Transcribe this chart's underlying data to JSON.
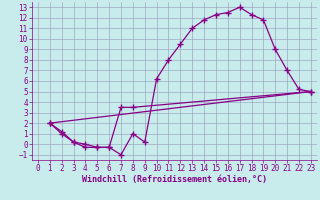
{
  "xlabel": "Windchill (Refroidissement éolien,°C)",
  "bg_color": "#c8ecec",
  "line_color": "#880088",
  "grid_color": "#9999bb",
  "xlim": [
    -0.5,
    23.5
  ],
  "ylim": [
    -1.5,
    13.5
  ],
  "xticks": [
    0,
    1,
    2,
    3,
    4,
    5,
    6,
    7,
    8,
    9,
    10,
    11,
    12,
    13,
    14,
    15,
    16,
    17,
    18,
    19,
    20,
    21,
    22,
    23
  ],
  "yticks": [
    -1,
    0,
    1,
    2,
    3,
    4,
    5,
    6,
    7,
    8,
    9,
    10,
    11,
    12,
    13
  ],
  "line1_x": [
    1,
    2,
    3,
    4,
    5,
    6,
    7,
    8,
    9,
    10,
    11,
    12,
    13,
    14,
    15,
    16,
    17,
    18,
    19,
    20,
    21,
    22,
    23
  ],
  "line1_y": [
    2,
    1,
    0.2,
    0,
    -0.3,
    -0.3,
    -1,
    1.0,
    0.2,
    6.2,
    8.0,
    9.5,
    11.0,
    11.8,
    12.3,
    12.5,
    13.0,
    12.3,
    11.8,
    9.0,
    7.0,
    5.2,
    5.0
  ],
  "line2_x": [
    1,
    2,
    3,
    4,
    5,
    6,
    7,
    8,
    23
  ],
  "line2_y": [
    2,
    1.2,
    0.2,
    -0.3,
    -0.3,
    -0.3,
    3.5,
    3.5,
    5.0
  ],
  "line3_x": [
    1,
    23
  ],
  "line3_y": [
    2,
    5.0
  ],
  "marker": "+",
  "markersize": 4,
  "markeredgewidth": 1.0,
  "linewidth": 0.9,
  "tick_fontsize": 5.5,
  "xlabel_fontsize": 6.0
}
